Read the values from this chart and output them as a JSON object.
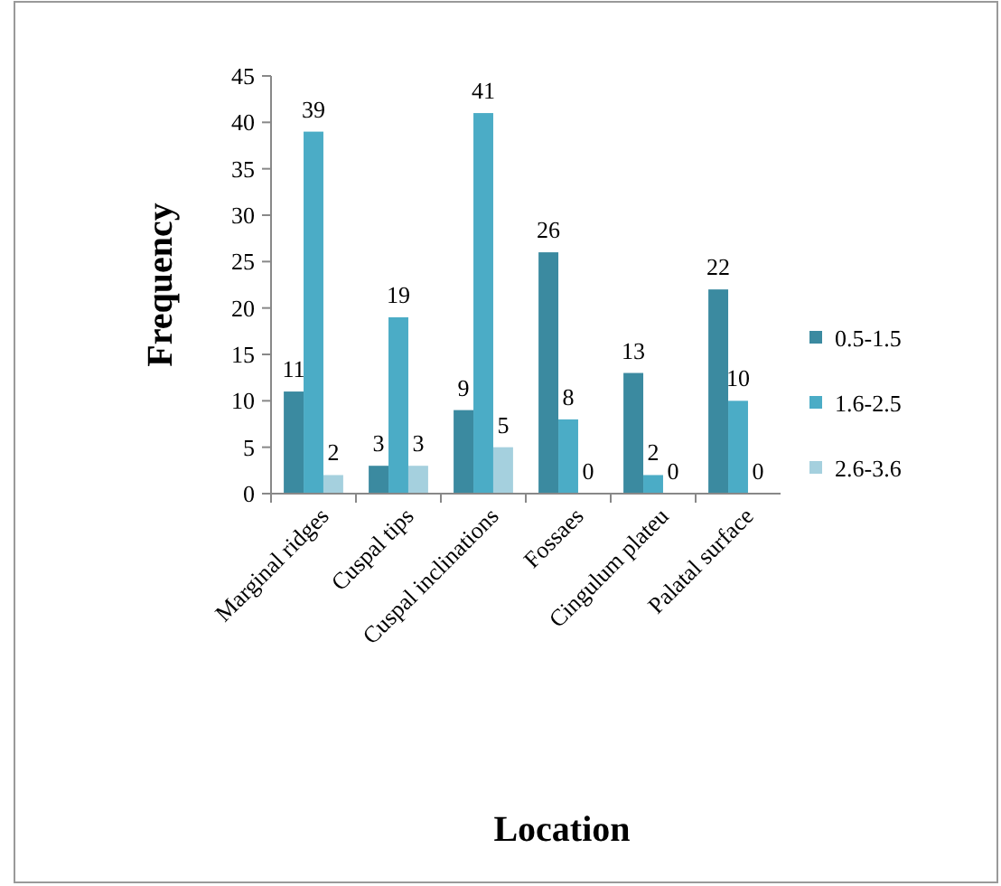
{
  "chart_data": {
    "type": "bar",
    "xlabel": "Location",
    "ylabel": "Frequency",
    "categories": [
      "Marginal ridges",
      "Cuspal tips",
      "Cuspal inclinations",
      "Fossaes",
      "Cingulum plateu",
      "Palatal surface"
    ],
    "series": [
      {
        "name": "0.5-1.5",
        "color": "#3b8aa0",
        "values": [
          11,
          3,
          9,
          26,
          13,
          22
        ]
      },
      {
        "name": "1.6-2.5",
        "color": "#4bacc6",
        "values": [
          39,
          19,
          41,
          8,
          2,
          10
        ]
      },
      {
        "name": "2.6-3.6",
        "color": "#a5d0de",
        "values": [
          2,
          3,
          5,
          0,
          0,
          0
        ]
      }
    ],
    "ylim": [
      0,
      45
    ],
    "yticks": [
      0,
      5,
      10,
      15,
      20,
      25,
      30,
      35,
      40,
      45
    ],
    "data_labels": true,
    "legend": "right",
    "grid": false
  }
}
